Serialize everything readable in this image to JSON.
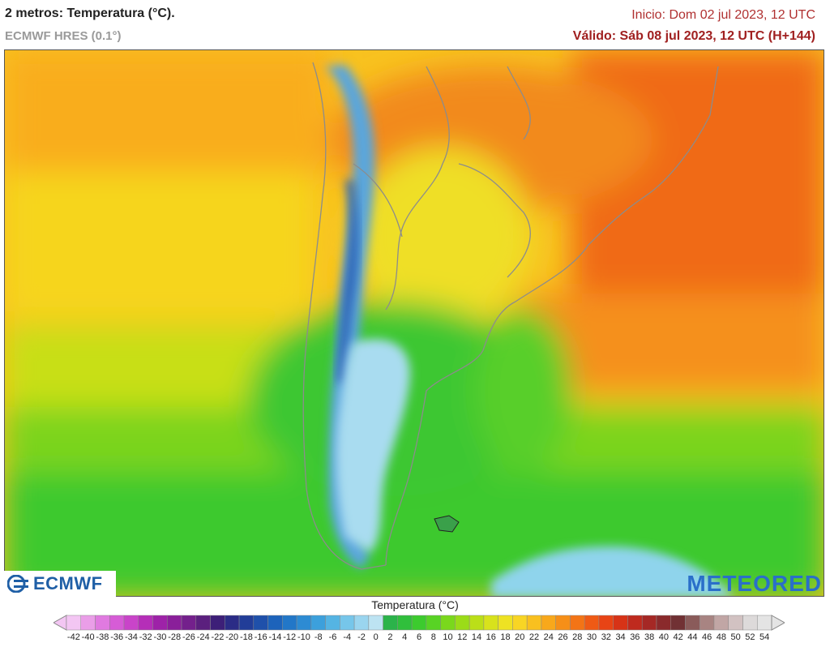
{
  "header": {
    "title": "2 metros: Temperatura (°C).",
    "model": "ECMWF HRES (0.1°)",
    "init": "Inicio: Dom 02 jul 2023, 12 UTC",
    "valid": "Válido: Sáb 08 jul 2023, 12 UTC (H+144)"
  },
  "logos": {
    "left": "ECMWF",
    "right": "METEORED"
  },
  "legend": {
    "title": "Temperatura (°C)",
    "ticks": [
      "-42",
      "-40",
      "-38",
      "-36",
      "-34",
      "-32",
      "-30",
      "-28",
      "-26",
      "-24",
      "-22",
      "-20",
      "-18",
      "-16",
      "-14",
      "-12",
      "-10",
      "-8",
      "-6",
      "-4",
      "-2",
      "0",
      "2",
      "4",
      "6",
      "8",
      "10",
      "12",
      "14",
      "16",
      "18",
      "20",
      "22",
      "24",
      "26",
      "28",
      "30",
      "32",
      "34",
      "36",
      "38",
      "40",
      "42",
      "44",
      "46",
      "48",
      "50",
      "52",
      "54"
    ],
    "colors": [
      "#f3c6f3",
      "#ea9ee8",
      "#e07ae0",
      "#d65cd6",
      "#c944c9",
      "#b52eb8",
      "#9e22a8",
      "#8a1f9a",
      "#74208c",
      "#5b207e",
      "#3d1f78",
      "#2b2c86",
      "#223d98",
      "#1f50aa",
      "#1d63bb",
      "#2277c8",
      "#2d8bd3",
      "#3ca0dc",
      "#55b4e3",
      "#76c6ea",
      "#9ad5ef",
      "#bde3f2",
      "#2bb34a",
      "#30bf3c",
      "#3ccb2e",
      "#58d324",
      "#7ad81c",
      "#9bdc18",
      "#bbdf18",
      "#d8e21c",
      "#eee223",
      "#f8d524",
      "#f9c01f",
      "#f8a81b",
      "#f68f18",
      "#f37416",
      "#ef5a15",
      "#e84415",
      "#d73317",
      "#bf2a1e",
      "#a52825",
      "#8a2a2c",
      "#713134",
      "#8a5b5a",
      "#a88482",
      "#c1a6a5",
      "#d2c2c2",
      "#dddada",
      "#e4e4e4"
    ],
    "scale_range": [
      -42,
      54
    ]
  }
}
